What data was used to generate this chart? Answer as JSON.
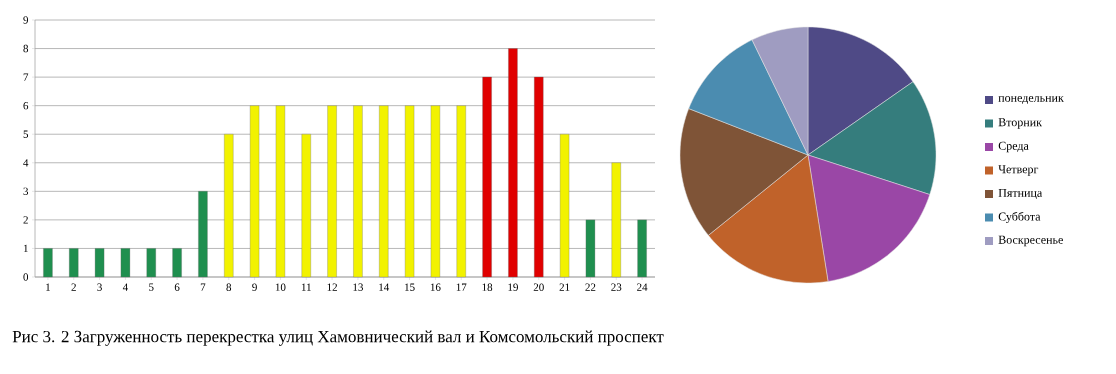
{
  "chart_data": [
    {
      "type": "bar",
      "categories": [
        "1",
        "2",
        "3",
        "4",
        "5",
        "6",
        "7",
        "8",
        "9",
        "10",
        "11",
        "12",
        "13",
        "14",
        "15",
        "16",
        "17",
        "18",
        "19",
        "20",
        "21",
        "22",
        "23",
        "24"
      ],
      "values": [
        1,
        1,
        1,
        1,
        1,
        1,
        3,
        5,
        6,
        6,
        5,
        6,
        6,
        6,
        6,
        6,
        6,
        7,
        8,
        7,
        5,
        2,
        4,
        2
      ],
      "colors": [
        "#1f8f4f",
        "#1f8f4f",
        "#1f8f4f",
        "#1f8f4f",
        "#1f8f4f",
        "#1f8f4f",
        "#1f8f4f",
        "#f2f200",
        "#f2f200",
        "#f2f200",
        "#f2f200",
        "#f2f200",
        "#f2f200",
        "#f2f200",
        "#f2f200",
        "#f2f200",
        "#f2f200",
        "#e00000",
        "#e00000",
        "#e00000",
        "#f2f200",
        "#1f8f4f",
        "#f2f200",
        "#1f8f4f"
      ],
      "ylim": [
        0,
        9
      ],
      "yticks": [
        0,
        1,
        2,
        3,
        4,
        5,
        6,
        7,
        8,
        9
      ],
      "grid": "y",
      "annotations": [
        "Рис 3. 2  Загруженность перекрестка улиц  Хамовнический вал  и Комсомольский проспект"
      ]
    },
    {
      "type": "pie",
      "categories": [
        "понедельник",
        "Вторник",
        "Среда",
        "Четверг",
        "Пятница",
        "Суббота",
        "Воскресенье"
      ],
      "values": [
        15.3,
        14.7,
        17.5,
        16.7,
        16.7,
        11.9,
        7.2
      ],
      "colors": [
        "#4f4a86",
        "#357d7d",
        "#9a47a6",
        "#c0622a",
        "#7f5437",
        "#4b8cb0",
        "#9f9cc1"
      ],
      "legend": "right"
    }
  ]
}
